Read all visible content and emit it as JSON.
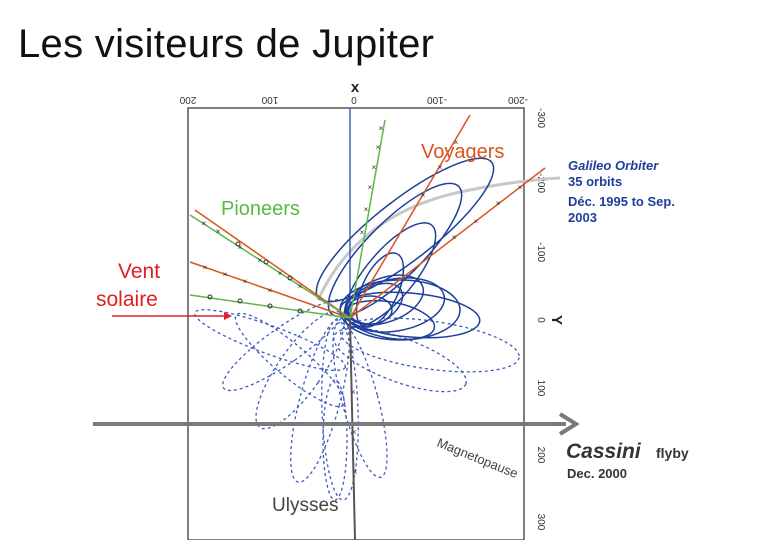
{
  "title": "Les visiteurs de Jupiter",
  "axes": {
    "x_label": "x",
    "y_label": "Y",
    "top_ticks": [
      "200",
      "100",
      "0",
      "-100",
      "-200"
    ],
    "right_ticks": [
      "-300",
      "-200",
      "-100",
      "0",
      "100",
      "200",
      "300"
    ]
  },
  "labels": {
    "voyagers": "Voyagers",
    "pioneers": "Pioneers",
    "vent_solaire_line1": "Vent",
    "vent_solaire_line2": "solaire",
    "ulysses": "Ulysses",
    "magnetopause": "Magnetopause",
    "galileo_line1": "Galileo Orbiter",
    "galileo_line2": "35 orbits",
    "galileo_line3": "Déc. 1995 to Sep.",
    "galileo_line4": "2003",
    "cassini_name": "Cassini",
    "cassini_flyby": "flyby",
    "cassini_date": "Dec. 2000"
  },
  "colors": {
    "voyagers": "#d9541e",
    "pioneers": "#5cb848",
    "vent_solaire": "#e02020",
    "galileo": "#1f3f9a",
    "cassini_arrow": "#7a7a7a",
    "ulysses": "#555555"
  }
}
